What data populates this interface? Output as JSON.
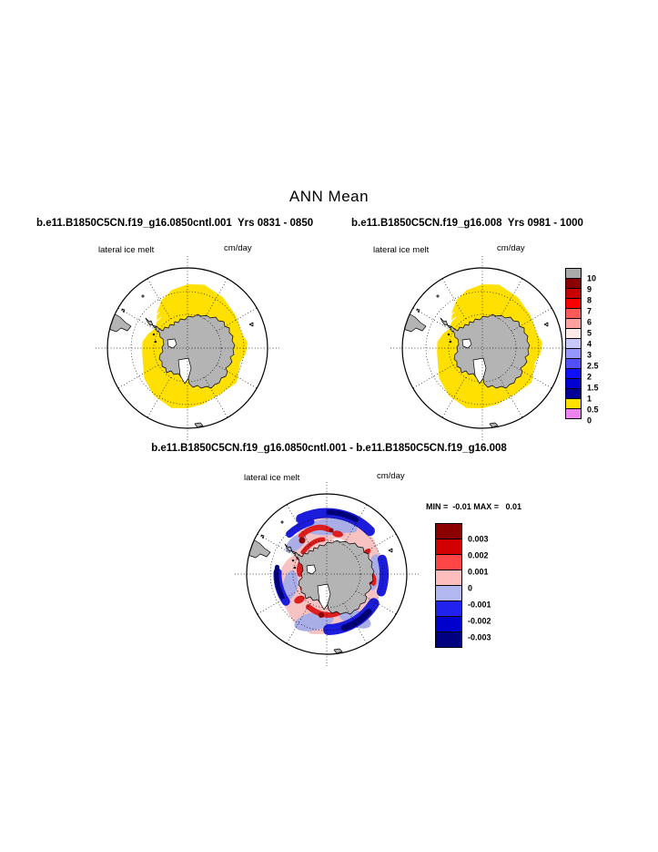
{
  "title": "ANN Mean",
  "panels": {
    "left": {
      "header": "b.e11.B1850C5CN.f19_g16.0850cntl.001  Yrs 0831 - 0850",
      "field_label": "lateral ice melt",
      "units_label": "cm/day"
    },
    "right": {
      "header": "b.e11.B1850C5CN.f19_g16.008  Yrs 0981 - 1000",
      "field_label": "lateral ice melt",
      "units_label": "cm/day"
    },
    "diff": {
      "header": "b.e11.B1850C5CN.f19_g16.0850cntl.001 - b.e11.B1850C5CN.f19_g16.008",
      "field_label": "lateral ice melt",
      "units_label": "cm/day",
      "stats": "MIN =  -0.01 MAX =   0.01"
    }
  },
  "colorbars": {
    "main": {
      "colors": [
        "#AAAAAA",
        "#8B0000",
        "#C80000",
        "#FA0000",
        "#FF5A5A",
        "#FFA0A0",
        "#FFE8E8",
        "#C8C8FF",
        "#9696FF",
        "#5050FF",
        "#0F0FFF",
        "#0000D2",
        "#000096",
        "#FFE000",
        "#EE82EE"
      ],
      "labels": [
        "10",
        "9",
        "8",
        "7",
        "6",
        "5",
        "4",
        "3",
        "2.5",
        "2",
        "1.5",
        "1",
        "0.5",
        "0"
      ]
    },
    "diff": {
      "colors": [
        "#8B0000",
        "#D20000",
        "#FF4646",
        "#FFBEBE",
        "#B4B8F0",
        "#2222EE",
        "#0000CC",
        "#000080"
      ],
      "labels": [
        "0.003",
        "0.002",
        "0.001",
        "0",
        "-0.001",
        "-0.002",
        "-0.003"
      ]
    }
  },
  "map_colors": {
    "ocean": "#FFFFFF",
    "land": "#B4B4B4",
    "coast": "#000000",
    "ice": "#FFE000",
    "diff_base_pink": "#F6C2C2",
    "diff_lavender": "#AAAEE6",
    "diff_red": "#DC1E1E",
    "diff_dark_red": "#8C0000",
    "diff_blue": "#1C1CDC",
    "diff_navy": "#000078",
    "shelf_white": "#FFFFFF"
  },
  "chart_data": [
    {
      "type": "heatmap",
      "subtype": "polar-stereographic map, Southern Hemisphere",
      "title": "b.e11.B1850C5CN.f19_g16.0850cntl.001  Yrs 0831 - 0850",
      "variable": "lateral ice melt",
      "units": "cm/day",
      "levels": [
        0,
        0.5,
        1,
        1.5,
        2,
        2.5,
        3,
        4,
        5,
        6,
        7,
        8,
        9,
        10
      ],
      "palette_low_to_high": [
        "#EE82EE",
        "#FFE000",
        "#000096",
        "#0000D2",
        "#0F0FFF",
        "#5050FF",
        "#9696FF",
        "#C8C8FF",
        "#FFE8E8",
        "#FFA0A0",
        "#FF5A5A",
        "#FA0000",
        "#C80000",
        "#8B0000",
        "#AAAAAA"
      ],
      "note": "Ring of sea ice around Antarctica entirely in the 0-0.5 cm/day (yellow) bin; land gray; open ocean white; dotted lat/lon graticule"
    },
    {
      "type": "heatmap",
      "subtype": "polar-stereographic map, Southern Hemisphere",
      "title": "b.e11.B1850C5CN.f19_g16.008  Yrs 0981 - 1000",
      "variable": "lateral ice melt",
      "units": "cm/day",
      "levels": [
        0,
        0.5,
        1,
        1.5,
        2,
        2.5,
        3,
        4,
        5,
        6,
        7,
        8,
        9,
        10
      ],
      "palette_low_to_high": [
        "#EE82EE",
        "#FFE000",
        "#000096",
        "#0000D2",
        "#0F0FFF",
        "#5050FF",
        "#9696FF",
        "#C8C8FF",
        "#FFE8E8",
        "#FFA0A0",
        "#FF5A5A",
        "#FA0000",
        "#C80000",
        "#8B0000",
        "#AAAAAA"
      ],
      "note": "Visually identical yellow 0-0.5 cm/day sea-ice ring around Antarctica"
    },
    {
      "type": "heatmap",
      "subtype": "difference map (case1 - case2), polar-stereographic",
      "title": "b.e11.B1850C5CN.f19_g16.0850cntl.001 - b.e11.B1850C5CN.f19_g16.008",
      "variable": "lateral ice melt",
      "units": "cm/day",
      "min": -0.01,
      "max": 0.01,
      "levels": [
        -0.003,
        -0.002,
        -0.001,
        0,
        0.001,
        0.002,
        0.003
      ],
      "palette_low_to_high": [
        "#000080",
        "#0000CC",
        "#2222EE",
        "#B4B8F0",
        "#FFBEBE",
        "#FF4646",
        "#D20000",
        "#8B0000"
      ],
      "note": "Mottled ring of small positive (red/pink) and negative (blue/lavender) differences around Antarctica"
    }
  ]
}
